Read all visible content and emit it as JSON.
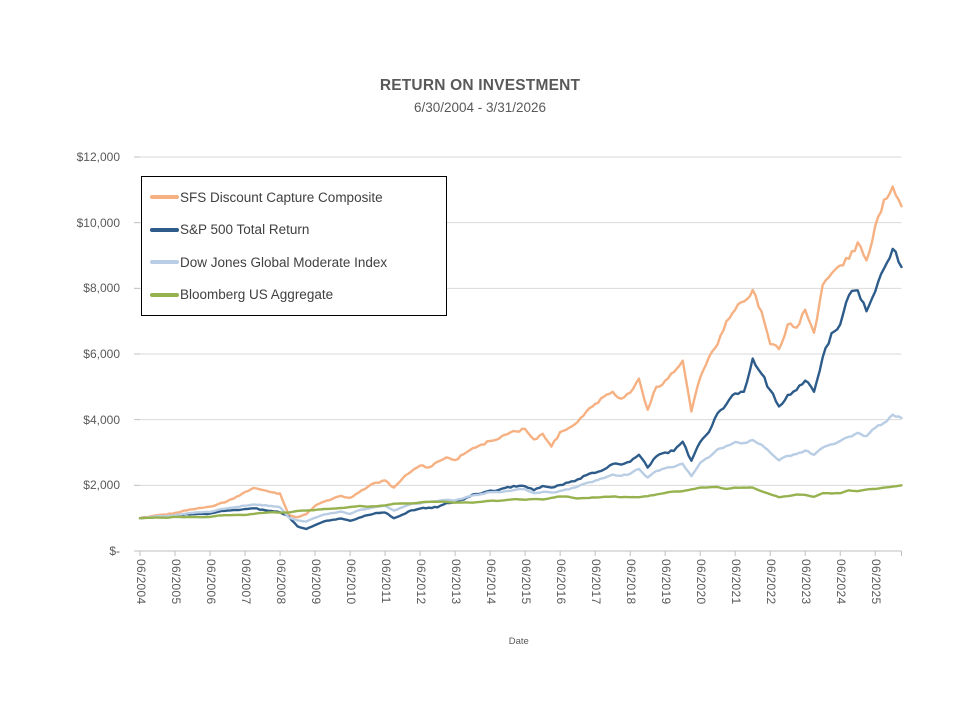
{
  "header": {
    "title": "RETURN ON INVESTMENT",
    "subtitle": "6/30/2004 - 3/31/2026"
  },
  "chart_data": {
    "type": "line",
    "title": "RETURN ON INVESTMENT",
    "subtitle": "6/30/2004 - 3/31/2026",
    "xlabel": "Date",
    "ylabel": "",
    "x_unit": "quarterly",
    "x_start_year": 2004.5,
    "x_step_years": 0.25,
    "x_tick_labels": [
      "06/2004",
      "06/2005",
      "06/2006",
      "06/2007",
      "06/2008",
      "06/2009",
      "06/2010",
      "06/2011",
      "06/2012",
      "06/2013",
      "06/2014",
      "06/2015",
      "06/2016",
      "06/2017",
      "06/2018",
      "06/2019",
      "06/2020",
      "06/2021",
      "06/2022",
      "06/2023",
      "06/2024",
      "06/2025"
    ],
    "y_ticks": [
      0,
      2000,
      4000,
      6000,
      8000,
      10000,
      12000
    ],
    "y_tick_labels": [
      "$-",
      "$2,000",
      "$4,000",
      "$6,000",
      "$8,000",
      "$10,000",
      "$12,000"
    ],
    "ylim": [
      0,
      12000
    ],
    "grid": "horizontal",
    "legend_position": "inside-top-left",
    "series": [
      {
        "name": "SFS Discount Capture Composite",
        "color": "#F6B183",
        "values": [
          1000,
          1040,
          1090,
          1110,
          1160,
          1230,
          1270,
          1310,
          1350,
          1440,
          1520,
          1650,
          1800,
          1920,
          1860,
          1790,
          1750,
          1100,
          1030,
          1120,
          1380,
          1500,
          1590,
          1680,
          1620,
          1780,
          1950,
          2080,
          2150,
          1930,
          2210,
          2420,
          2600,
          2550,
          2720,
          2850,
          2770,
          2950,
          3130,
          3240,
          3350,
          3420,
          3560,
          3640,
          3720,
          3400,
          3570,
          3180,
          3620,
          3750,
          3930,
          4250,
          4480,
          4700,
          4850,
          4640,
          4820,
          5250,
          4300,
          5000,
          5190,
          5450,
          5800,
          4250,
          5280,
          5900,
          6300,
          7000,
          7350,
          7600,
          7950,
          7300,
          6300,
          6150,
          6900,
          6800,
          7350,
          6650,
          8100,
          8450,
          8700,
          8900,
          9400,
          8850,
          9900,
          10700,
          11100,
          10500
        ]
      },
      {
        "name": "S&P 500 Total Return",
        "color": "#2E5C8A",
        "values": [
          1000,
          1010,
          1050,
          1040,
          1070,
          1110,
          1120,
          1130,
          1140,
          1200,
          1230,
          1250,
          1280,
          1300,
          1260,
          1220,
          1180,
          1050,
          750,
          670,
          790,
          900,
          950,
          990,
          920,
          1010,
          1090,
          1160,
          1170,
          1000,
          1110,
          1240,
          1290,
          1320,
          1330,
          1460,
          1500,
          1570,
          1720,
          1750,
          1840,
          1860,
          1950,
          1960,
          1970,
          1850,
          1980,
          1930,
          2010,
          2090,
          2180,
          2310,
          2380,
          2480,
          2650,
          2630,
          2720,
          2930,
          2540,
          2880,
          3000,
          3050,
          3330,
          2750,
          3320,
          3620,
          4200,
          4470,
          4800,
          4850,
          5860,
          5400,
          4900,
          4400,
          4750,
          4900,
          5190,
          4850,
          5900,
          6630,
          6900,
          7790,
          7940,
          7300,
          7900,
          8600,
          9200,
          8650
        ]
      },
      {
        "name": "Dow Jones Global Moderate Index",
        "color": "#B9CDE5",
        "values": [
          1000,
          1030,
          1060,
          1060,
          1090,
          1130,
          1160,
          1180,
          1190,
          1260,
          1300,
          1340,
          1380,
          1420,
          1390,
          1370,
          1330,
          1020,
          930,
          900,
          1010,
          1110,
          1160,
          1200,
          1130,
          1240,
          1290,
          1350,
          1380,
          1230,
          1330,
          1430,
          1450,
          1490,
          1520,
          1560,
          1540,
          1610,
          1690,
          1730,
          1790,
          1790,
          1830,
          1870,
          1880,
          1760,
          1800,
          1780,
          1830,
          1880,
          1960,
          2070,
          2140,
          2220,
          2330,
          2290,
          2350,
          2500,
          2240,
          2440,
          2520,
          2560,
          2660,
          2280,
          2690,
          2850,
          3100,
          3200,
          3320,
          3290,
          3380,
          3240,
          3000,
          2760,
          2900,
          2950,
          3060,
          2930,
          3150,
          3250,
          3350,
          3480,
          3600,
          3500,
          3750,
          3900,
          4150,
          4050
        ]
      },
      {
        "name": "Bloomberg US Aggregate",
        "color": "#95B24F",
        "values": [
          1000,
          1010,
          1020,
          1010,
          1040,
          1030,
          1040,
          1030,
          1040,
          1080,
          1090,
          1100,
          1100,
          1130,
          1160,
          1180,
          1170,
          1170,
          1220,
          1230,
          1250,
          1280,
          1290,
          1310,
          1340,
          1370,
          1350,
          1360,
          1390,
          1440,
          1450,
          1450,
          1480,
          1500,
          1500,
          1500,
          1470,
          1480,
          1470,
          1500,
          1530,
          1530,
          1560,
          1580,
          1560,
          1580,
          1570,
          1620,
          1660,
          1650,
          1600,
          1610,
          1630,
          1650,
          1660,
          1640,
          1640,
          1640,
          1670,
          1720,
          1770,
          1810,
          1820,
          1880,
          1930,
          1940,
          1950,
          1890,
          1930,
          1930,
          1930,
          1820,
          1730,
          1640,
          1670,
          1720,
          1710,
          1650,
          1760,
          1750,
          1760,
          1850,
          1820,
          1870,
          1890,
          1930,
          1960,
          2000
        ]
      }
    ]
  },
  "colors": {
    "gridline": "#D9D9D9",
    "axis_line": "#BFBFBF",
    "axis_text": "#595959",
    "legend_border": "#000000",
    "legend_text": "#404040"
  }
}
